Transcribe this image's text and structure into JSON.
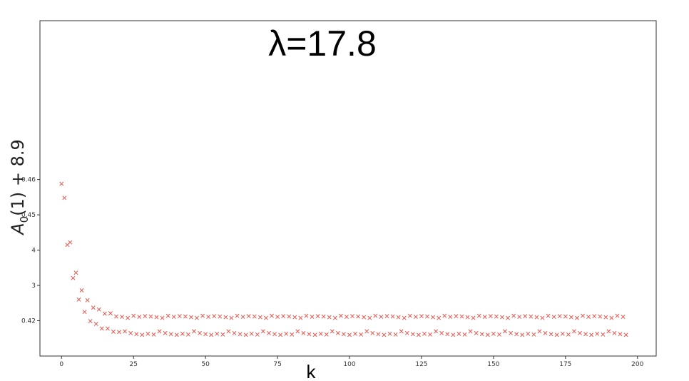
{
  "chart_data": {
    "type": "scatter",
    "title": "λ=17.8",
    "xlabel": "k",
    "ylabel_main": "A",
    "ylabel_sub": "0",
    "ylabel_rest": "(1) + 8.9",
    "xlim": [
      -7.5,
      206.5
    ],
    "ylim": [
      0,
      9.5
    ],
    "x_ticks": [
      {
        "value": 0,
        "label": "0"
      },
      {
        "value": 25,
        "label": "25"
      },
      {
        "value": 50,
        "label": "50"
      },
      {
        "value": 75,
        "label": "75"
      },
      {
        "value": 100,
        "label": "100"
      },
      {
        "value": 125,
        "label": "125"
      },
      {
        "value": 150,
        "label": "150"
      },
      {
        "value": 175,
        "label": "175"
      },
      {
        "value": 200,
        "label": "200"
      }
    ],
    "y_ticks": [
      {
        "value": 1,
        "label": "0.42"
      },
      {
        "value": 2,
        "label": "3"
      },
      {
        "value": 3,
        "label": "4"
      },
      {
        "value": 4,
        "label": "0.45"
      },
      {
        "value": 5,
        "label": "0.46"
      }
    ],
    "marker": "x",
    "marker_color": "#e8564e",
    "grid": false,
    "head_points": [
      {
        "x": 0,
        "y": 4.88
      },
      {
        "x": 1,
        "y": 4.48
      },
      {
        "x": 2,
        "y": 3.15
      },
      {
        "x": 3,
        "y": 3.22
      },
      {
        "x": 4,
        "y": 2.21
      },
      {
        "x": 5,
        "y": 2.36
      },
      {
        "x": 6,
        "y": 1.6
      },
      {
        "x": 7,
        "y": 1.86
      },
      {
        "x": 8,
        "y": 1.25
      },
      {
        "x": 9,
        "y": 1.58
      },
      {
        "x": 10,
        "y": 0.99
      },
      {
        "x": 11,
        "y": 1.37
      },
      {
        "x": 12,
        "y": 0.91
      },
      {
        "x": 13,
        "y": 1.32
      },
      {
        "x": 14,
        "y": 0.78
      },
      {
        "x": 15,
        "y": 1.2
      },
      {
        "x": 16,
        "y": 0.78
      },
      {
        "x": 17,
        "y": 1.21
      },
      {
        "x": 18,
        "y": 0.69
      },
      {
        "x": 19,
        "y": 1.12
      },
      {
        "x": 20,
        "y": 0.68
      },
      {
        "x": 21,
        "y": 1.11
      }
    ],
    "tail": {
      "x_start": 22,
      "x_end": 196,
      "upper_y": 1.09,
      "lower_y": 0.65
    },
    "annotations": []
  }
}
